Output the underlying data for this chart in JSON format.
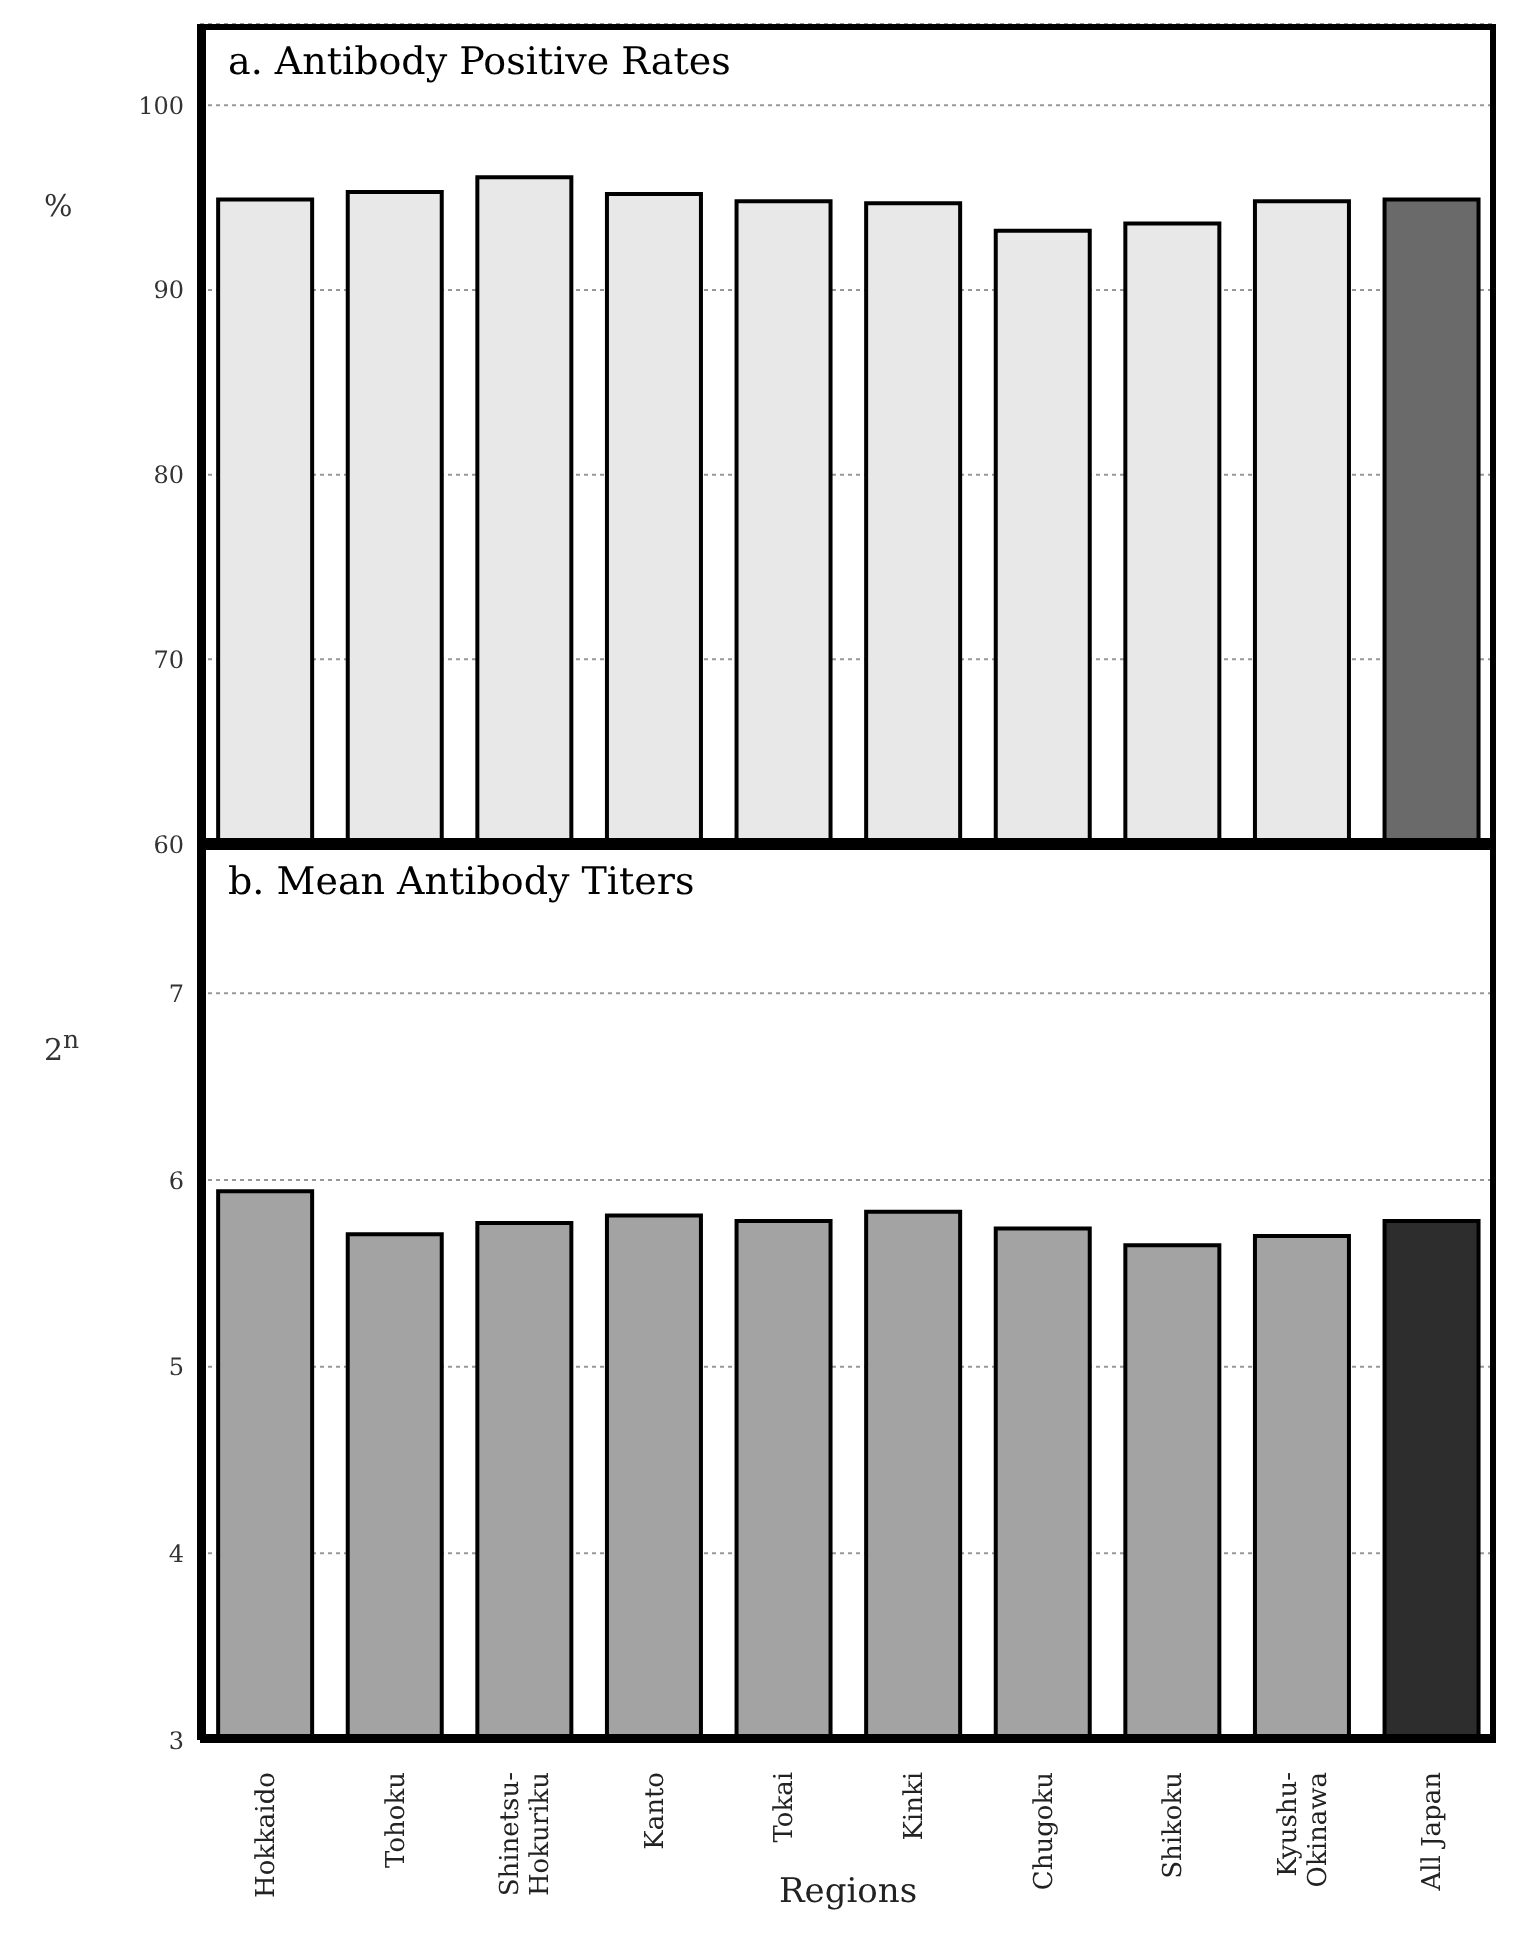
{
  "chart_data": [
    {
      "type": "bar",
      "title": "a. Antibody Positive Rates",
      "ylabel": "%",
      "categories": [
        null,
        null,
        null,
        null,
        null,
        null,
        null,
        null,
        null,
        null
      ],
      "values": [
        94.9,
        95.3,
        96.1,
        95.2,
        94.8,
        94.7,
        93.2,
        93.6,
        94.8,
        94.9
      ],
      "colors": [
        "#e8e8e8",
        "#e8e8e8",
        "#e8e8e8",
        "#e8e8e8",
        "#e8e8e8",
        "#e8e8e8",
        "#e8e8e8",
        "#e8e8e8",
        "#e8e8e8",
        "#6a6a6a"
      ],
      "ylim": [
        60,
        104.4
      ],
      "yticks": [
        60,
        70,
        80,
        90,
        100
      ],
      "grid": "y",
      "tick_labels": "y"
    },
    {
      "type": "bar",
      "title": "b. Mean Antibody Titers",
      "ylabel": "2$^{n}$",
      "xlabel": "Regions",
      "categories": [
        "Hokkaido",
        "Tohoku",
        "Shinetsu-Hokuriku",
        "Kanto",
        "Tokai",
        "Kinki",
        "Chugoku",
        "Shikoku",
        "Kyushu-Okinawa",
        "All Japan"
      ],
      "values": [
        5.94,
        5.71,
        5.77,
        5.81,
        5.78,
        5.83,
        5.74,
        5.65,
        5.7,
        5.78
      ],
      "colors": [
        "#a3a3a3",
        "#a3a3a3",
        "#a3a3a3",
        "#a3a3a3",
        "#a3a3a3",
        "#a3a3a3",
        "#a3a3a3",
        "#a3a3a3",
        "#a3a3a3",
        "#2d2d2d"
      ],
      "ylim": [
        3,
        7.8
      ],
      "yticks": [
        3,
        4,
        5,
        6,
        7
      ],
      "grid": "y"
    }
  ]
}
